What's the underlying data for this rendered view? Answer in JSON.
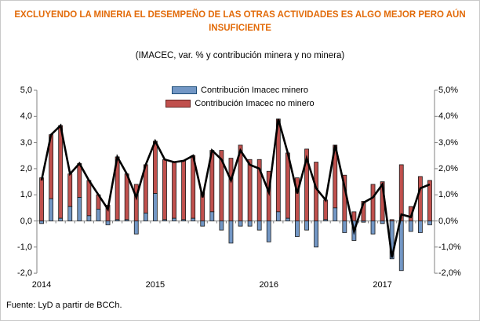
{
  "title": "EXCLUYENDO LA MINERIA EL DESEMPEÑO DE LAS OTRAS ACTIVIDADES ES ALGO MEJOR PERO AÚN INSUFICIENTE",
  "subtitle": "(IMACEC, var. % y contribución minera y no minera)",
  "footer": "Fuente: LyD a partir de BCCh.",
  "legend": [
    {
      "label": "Contribución Imacec minero",
      "color": "#7397C5"
    },
    {
      "label": "Contribución Imacec no minero",
      "color": "#C0504D"
    }
  ],
  "colors": {
    "title": "#E26B0A",
    "mining_bar": "#7397C5",
    "nonmining_bar": "#C0504D",
    "bar_border": "#1a1a1a",
    "total_line": "#000000",
    "axis": "#808080",
    "frame": "#c9c9c9"
  },
  "chart_data": {
    "type": "bar",
    "subtype": "stacked monthly contribution bars with black total line",
    "x": [
      "2014-01",
      "2014-02",
      "2014-03",
      "2014-04",
      "2014-05",
      "2014-06",
      "2014-07",
      "2014-08",
      "2014-09",
      "2014-10",
      "2014-11",
      "2014-12",
      "2015-01",
      "2015-02",
      "2015-03",
      "2015-04",
      "2015-05",
      "2015-06",
      "2015-07",
      "2015-08",
      "2015-09",
      "2015-10",
      "2015-11",
      "2015-12",
      "2016-01",
      "2016-02",
      "2016-03",
      "2016-04",
      "2016-05",
      "2016-06",
      "2016-07",
      "2016-08",
      "2016-09",
      "2016-10",
      "2016-11",
      "2016-12",
      "2017-01",
      "2017-02",
      "2017-03",
      "2017-04",
      "2017-05",
      "2017-06"
    ],
    "series": [
      {
        "name": "Contribución Imacec minero",
        "values": [
          -0.1,
          0.85,
          0.1,
          0.55,
          0.9,
          0.2,
          0.45,
          -0.15,
          0.05,
          0.05,
          -0.5,
          0.3,
          1.05,
          0.05,
          0.1,
          0.05,
          0.1,
          -0.2,
          0.35,
          -0.35,
          -0.85,
          -0.2,
          -0.2,
          -0.35,
          -0.8,
          0.35,
          0.1,
          -0.6,
          -0.35,
          -1.0,
          0.05,
          0.5,
          -0.45,
          -0.75,
          -0.05,
          -0.5,
          -0.1,
          -1.45,
          -1.9,
          -0.4,
          -0.45,
          -0.15
        ]
      },
      {
        "name": "Contribución Imacec no minero",
        "values": [
          1.65,
          2.45,
          3.55,
          1.25,
          1.3,
          1.35,
          0.55,
          0.6,
          2.4,
          1.75,
          1.4,
          1.85,
          2.0,
          2.3,
          2.15,
          2.25,
          2.4,
          1.1,
          2.35,
          2.7,
          2.4,
          2.9,
          2.35,
          2.35,
          1.9,
          3.55,
          2.5,
          1.65,
          2.75,
          2.25,
          0.75,
          2.4,
          1.75,
          0.35,
          0.75,
          1.4,
          1.5,
          0.05,
          2.15,
          0.55,
          1.7,
          1.55
        ]
      },
      {
        "name": "IMACEC var. % (línea, suma de contribuciones)",
        "values": [
          1.55,
          3.3,
          3.65,
          1.8,
          2.2,
          1.55,
          1.0,
          0.45,
          2.45,
          1.8,
          0.9,
          2.15,
          3.05,
          2.35,
          2.25,
          2.3,
          2.5,
          0.9,
          2.7,
          2.35,
          1.55,
          2.7,
          2.15,
          2.0,
          1.1,
          3.9,
          2.6,
          1.05,
          2.4,
          1.25,
          0.8,
          2.9,
          1.3,
          -0.4,
          0.7,
          0.9,
          1.4,
          -1.4,
          0.25,
          0.15,
          1.25,
          1.4
        ]
      }
    ],
    "ylim": [
      -2.0,
      5.0
    ],
    "yticks_left": [
      "5,0",
      "4,0",
      "3,0",
      "2,0",
      "1,0",
      "0,0",
      "-1,0",
      "-2,0"
    ],
    "yticks_right": [
      "5,0%",
      "4,0%",
      "3,0%",
      "2,0%",
      "1,0%",
      "0,0%",
      "-1,0%",
      "-2,0%"
    ],
    "ytick_values": [
      5,
      4,
      3,
      2,
      1,
      0,
      -1,
      -2
    ],
    "xtick_labels": [
      "2014",
      "2015",
      "2016",
      "2017"
    ],
    "grid": "off",
    "legend_position": "top-center inside plot"
  }
}
